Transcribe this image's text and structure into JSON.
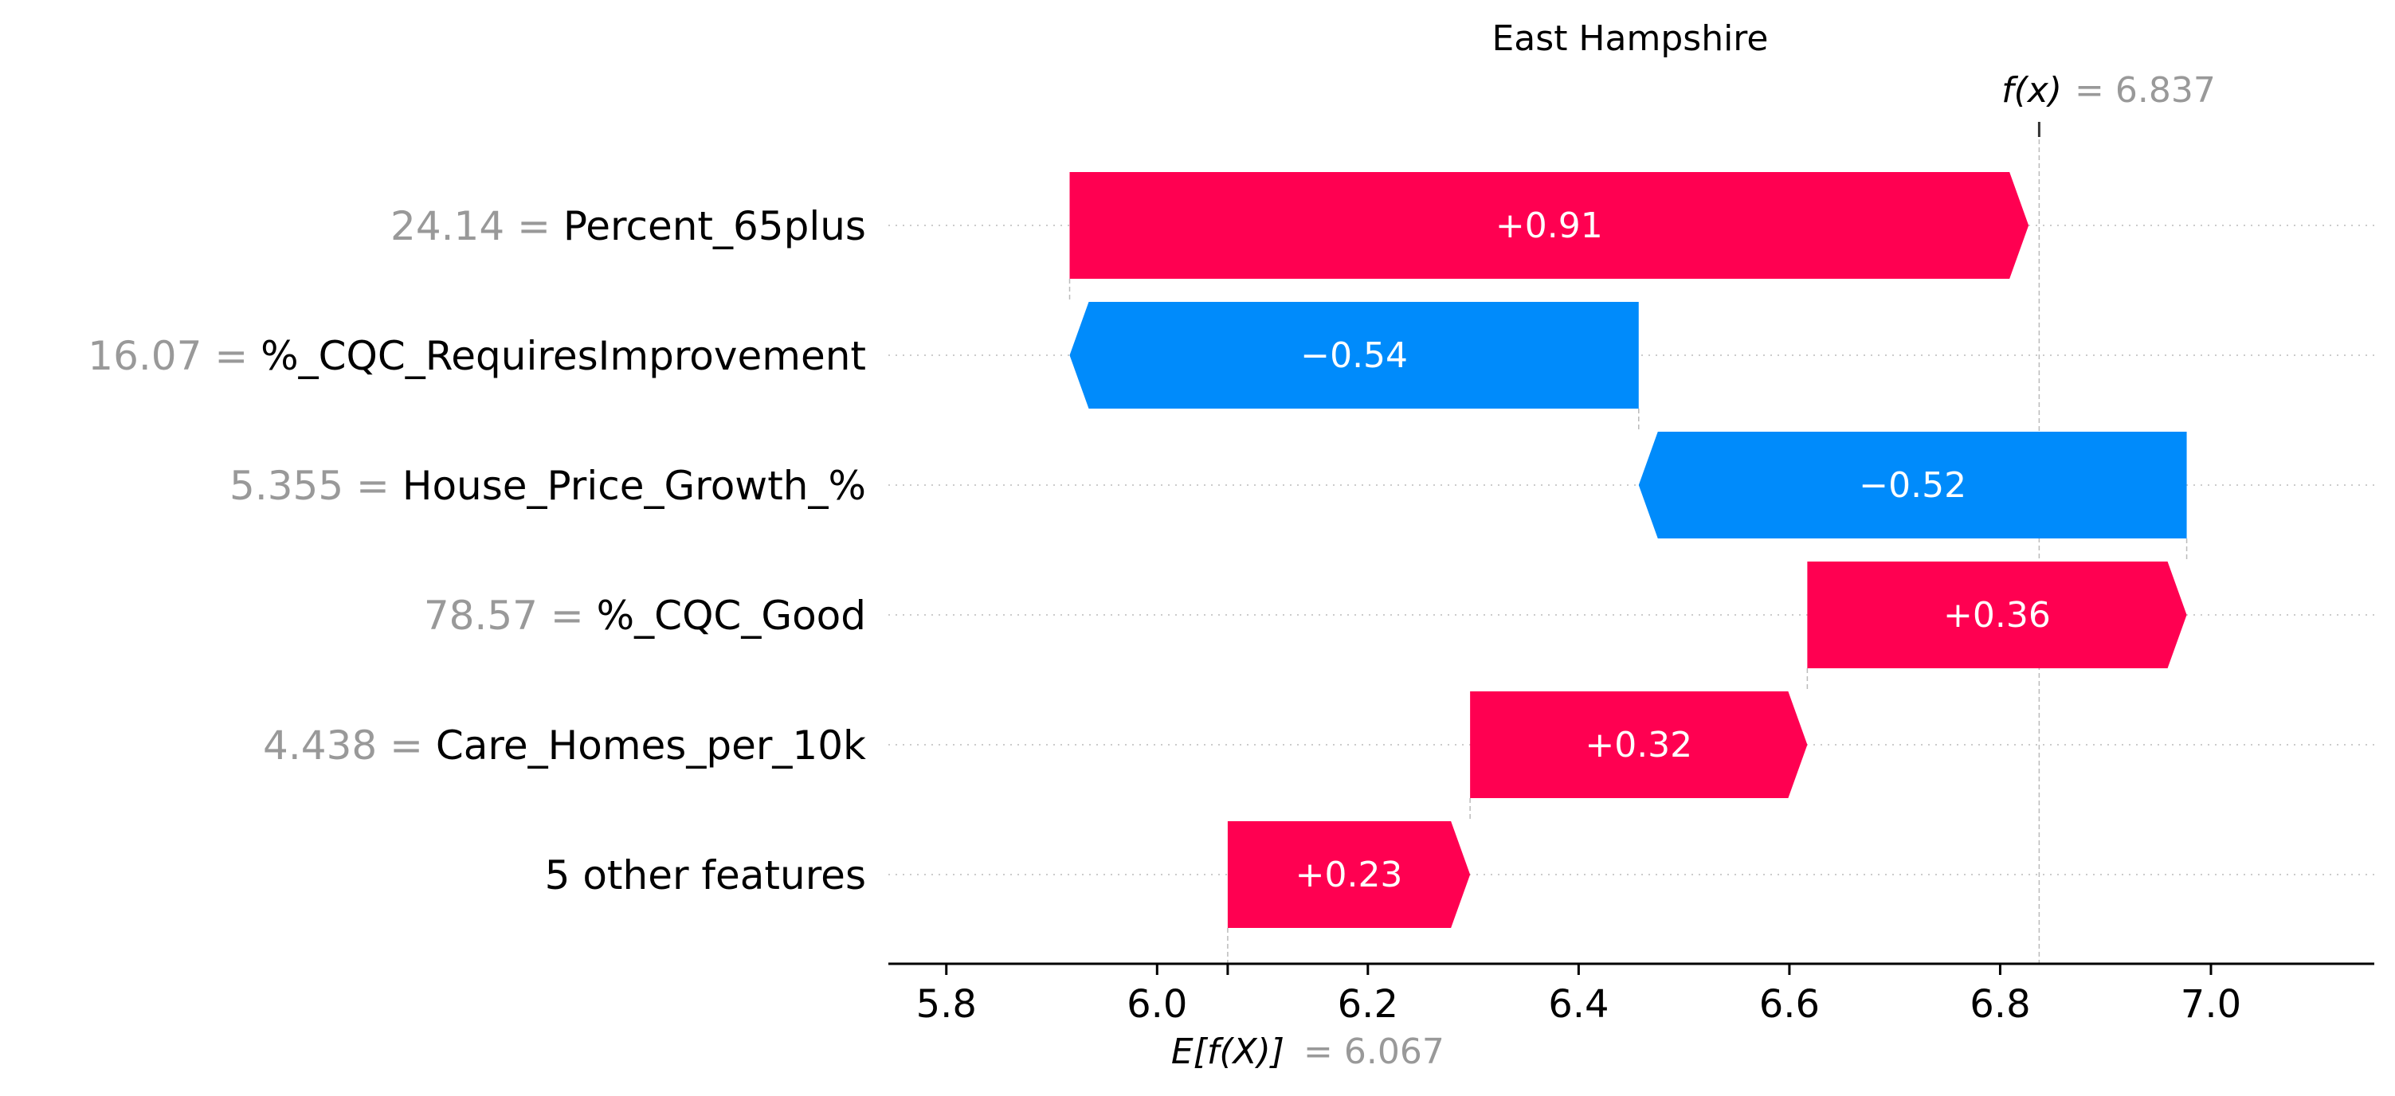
{
  "chart_data": {
    "type": "waterfall",
    "title": "East Hampshire",
    "fx_label": "f(x)",
    "fx_value": "= 6.837",
    "fx": 6.837,
    "ef_label": "E[f(X)]",
    "ef_value": "= 6.067",
    "base": 6.067,
    "xlim": [
      5.745,
      7.155
    ],
    "xticks": [
      5.8,
      6.0,
      6.2,
      6.4,
      6.6,
      6.8,
      7.0
    ],
    "xtick_labels": [
      "5.8",
      "6.0",
      "6.2",
      "6.4",
      "6.6",
      "6.8",
      "7.0"
    ],
    "features": [
      {
        "value_text": "24.14 =",
        "name": "Percent_65plus",
        "contribution": 0.91,
        "label": "+0.91"
      },
      {
        "value_text": "16.07 =",
        "name": "%_CQC_RequiresImprovement",
        "contribution": -0.54,
        "label": "−0.54"
      },
      {
        "value_text": "5.355 =",
        "name": "House_Price_Growth_%",
        "contribution": -0.52,
        "label": "−0.52"
      },
      {
        "value_text": "78.57 =",
        "name": "%_CQC_Good",
        "contribution": 0.36,
        "label": "+0.36"
      },
      {
        "value_text": "4.438 =",
        "name": "Care_Homes_per_10k",
        "contribution": 0.32,
        "label": "+0.32"
      },
      {
        "value_text": "",
        "name": "5 other features",
        "contribution": 0.23,
        "label": "+0.23"
      }
    ],
    "colors": {
      "positive": "#ff0051",
      "negative": "#008bfb",
      "value_text": "#999999",
      "name_text": "#000000",
      "axis": "#000000",
      "gridline": "#cccccc",
      "connector": "#bbbbbb",
      "bar_label": "#ffffff"
    }
  }
}
